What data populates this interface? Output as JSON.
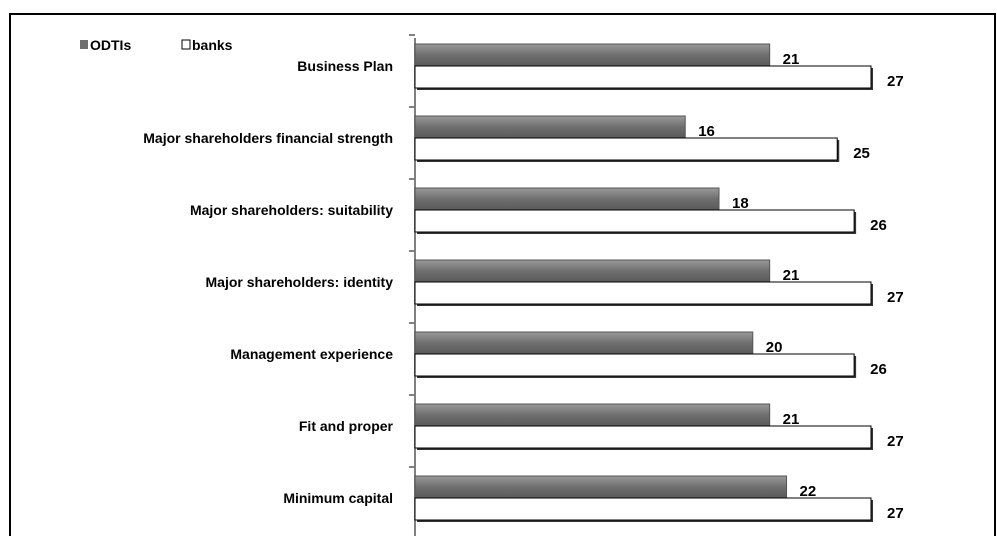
{
  "chart_data": {
    "type": "bar",
    "orientation": "horizontal",
    "categories": [
      "Business Plan",
      "Major shareholders financial strength",
      "Major shareholders: suitability",
      "Major shareholders: identity",
      "Management experience",
      "Fit and proper",
      "Minimum capital"
    ],
    "series": [
      {
        "name": "ODTIs",
        "values": [
          21,
          16,
          18,
          21,
          20,
          21,
          22
        ],
        "color": "#7f7f7f"
      },
      {
        "name": "banks",
        "values": [
          27,
          25,
          26,
          27,
          26,
          27,
          27
        ],
        "color": "#ffffff"
      }
    ],
    "xlim": [
      0,
      27
    ],
    "grid": false,
    "legend": "top-left",
    "title": "",
    "xlabel": "",
    "ylabel": ""
  }
}
